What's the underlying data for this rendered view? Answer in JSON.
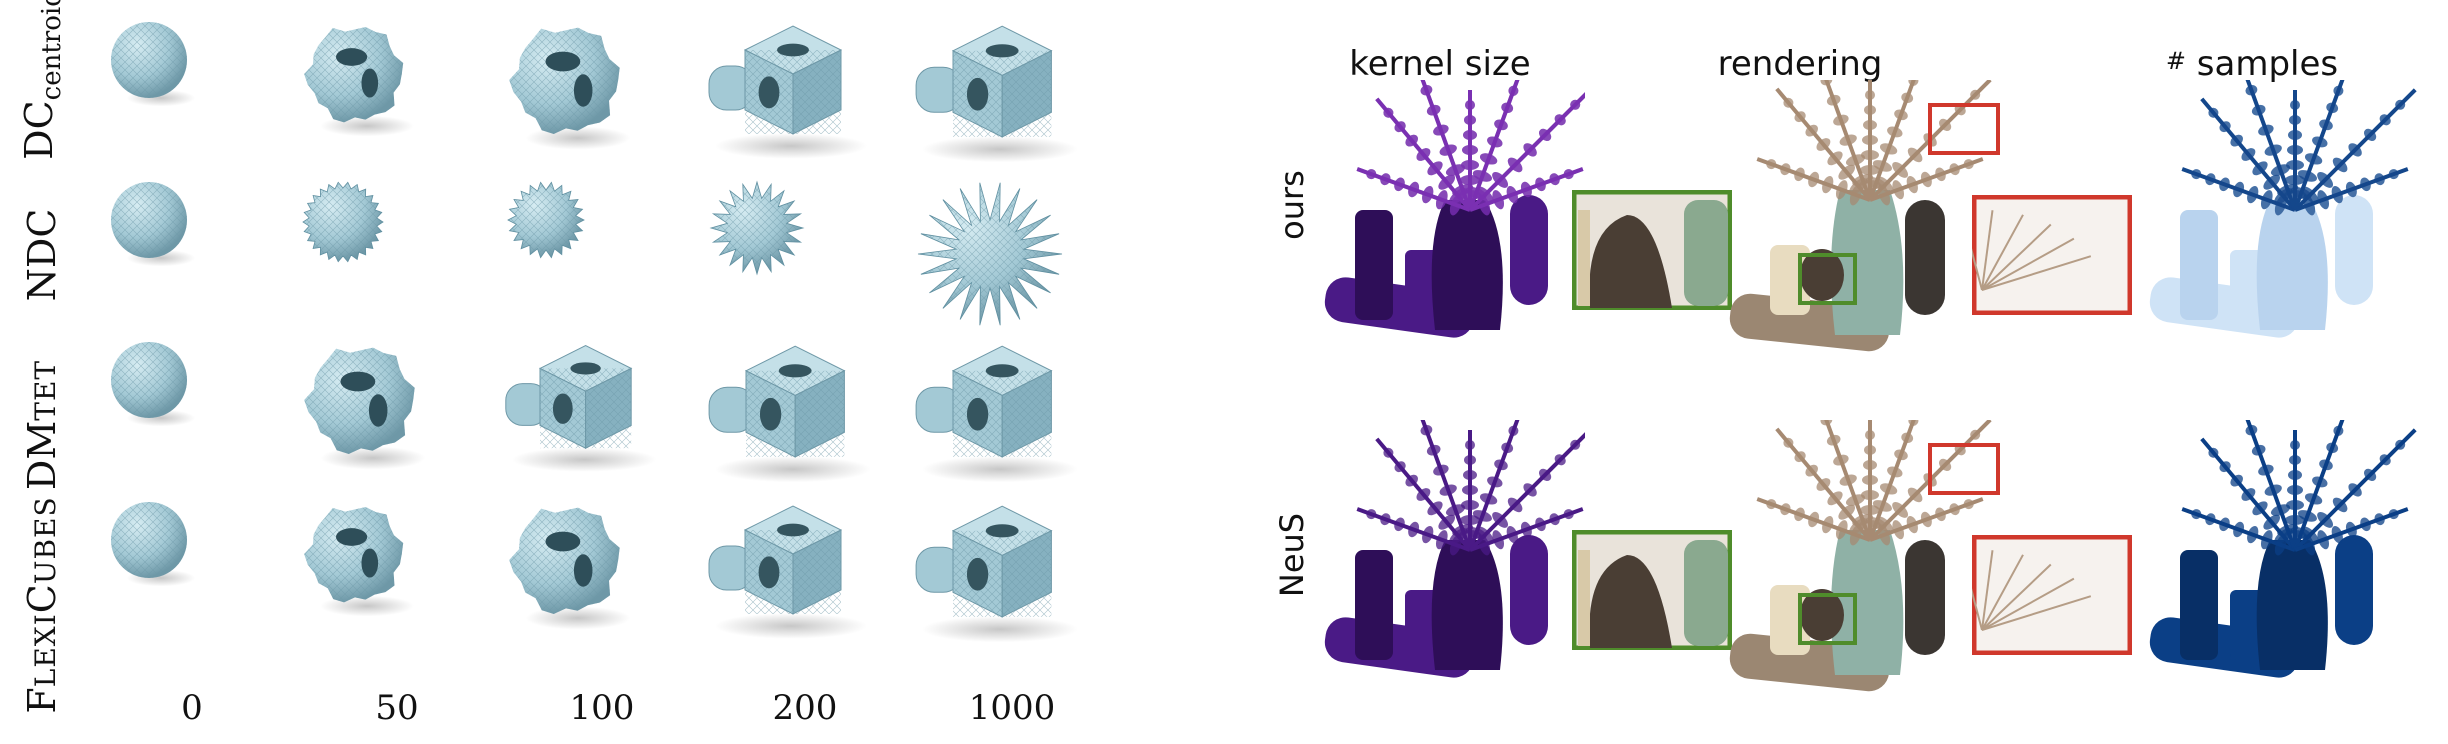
{
  "left": {
    "row_labels": [
      {
        "main": "DC",
        "sub": "centroid"
      },
      {
        "main": "NDC"
      },
      {
        "main": "DM",
        "sc": "TET"
      },
      {
        "main": "F",
        "sc": "LEXI",
        "main2": "C",
        "sc2": "UBES"
      }
    ],
    "col_labels": [
      "0",
      "50",
      "100",
      "200",
      "1000"
    ]
  },
  "right": {
    "headers": [
      "kernel size",
      "rendering",
      "samples"
    ],
    "header_hash": "#",
    "method_labels": [
      "ours",
      "NeuS"
    ]
  },
  "colors": {
    "mesh": "#a9cdd8",
    "mesh_dark": "#5f8fa0",
    "kernel": "#4a1a86",
    "kernel_bright": "#9b3fd0",
    "samples": "#0b3f86",
    "samples_light": "#cfe3f6",
    "inset_green": "#4f8c2b",
    "inset_red": "#d0382c"
  }
}
